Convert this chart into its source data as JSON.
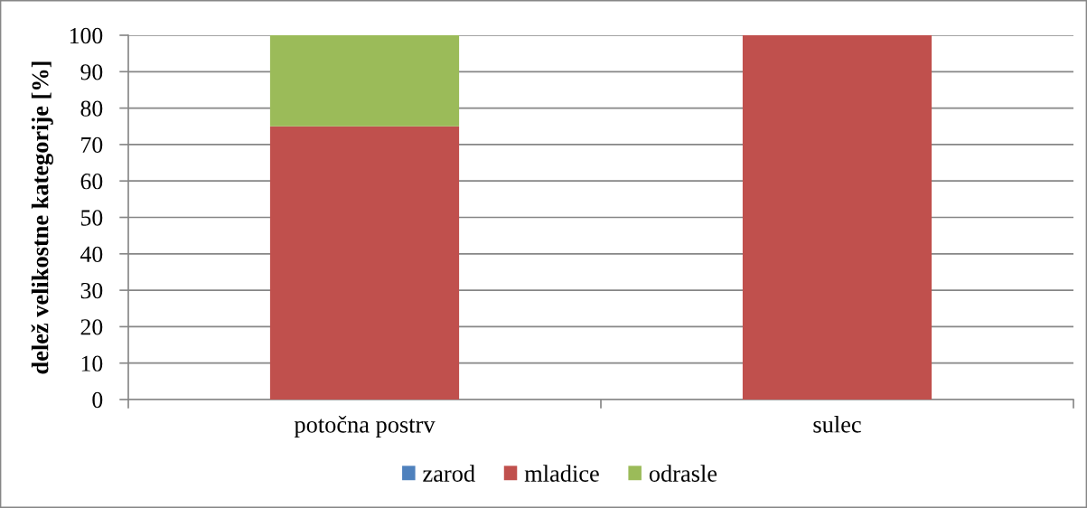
{
  "chart_data": {
    "type": "bar",
    "stacked": true,
    "ylabel": "delež velikostne kategorije [%]",
    "categories": [
      "potočna postrv",
      "sulec"
    ],
    "series": [
      {
        "name": "zarod",
        "color": "#4f81bd",
        "values": [
          0,
          0
        ]
      },
      {
        "name": "mladice",
        "color": "#c0504d",
        "values": [
          75,
          100
        ]
      },
      {
        "name": "odrasle",
        "color": "#9bbb59",
        "values": [
          25,
          0
        ]
      }
    ],
    "ylim": [
      0,
      100
    ],
    "yticks": [
      0,
      10,
      20,
      30,
      40,
      50,
      60,
      70,
      80,
      90,
      100
    ],
    "grid": "y",
    "legend": "bottom"
  }
}
